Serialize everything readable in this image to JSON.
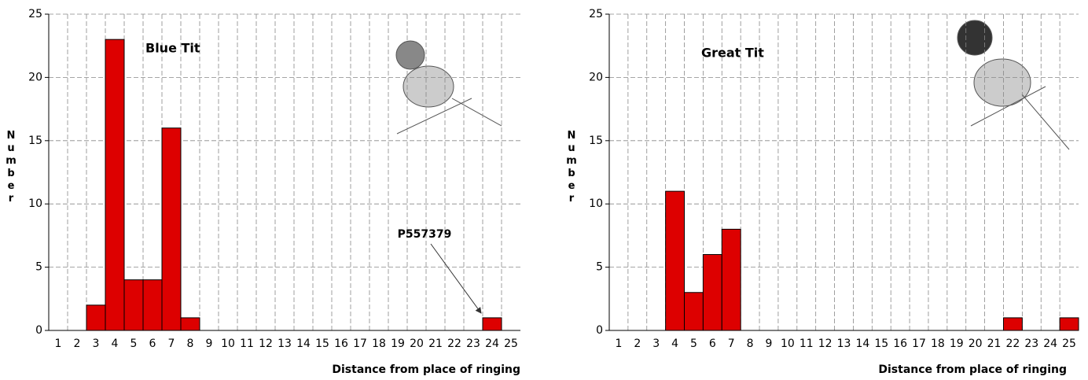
{
  "chart_data": [
    {
      "type": "bar",
      "title": "Blue Tit",
      "ylabel": "Number",
      "xlabel": "Distance from place of ringing",
      "categories": [
        "1",
        "2",
        "3",
        "4",
        "5",
        "6",
        "7",
        "8",
        "9",
        "10",
        "11",
        "12",
        "13",
        "14",
        "15",
        "16",
        "17",
        "18",
        "19",
        "20",
        "21",
        "22",
        "23",
        "24",
        "25"
      ],
      "values": [
        0,
        0,
        2,
        23,
        4,
        4,
        16,
        1,
        0,
        0,
        0,
        0,
        0,
        0,
        0,
        0,
        0,
        0,
        0,
        0,
        0,
        0,
        0,
        1,
        0
      ],
      "color": "#dd0000",
      "ylim": [
        0,
        25
      ],
      "yticks": [
        0,
        5,
        10,
        15,
        20,
        25
      ],
      "grid": true,
      "annotation": "P557379"
    },
    {
      "type": "bar",
      "title": "Great Tit",
      "ylabel": "Number",
      "xlabel": "Distance from place of ringing",
      "categories": [
        "1",
        "2",
        "3",
        "4",
        "5",
        "6",
        "7",
        "8",
        "9",
        "10",
        "11",
        "12",
        "13",
        "14",
        "15",
        "16",
        "17",
        "18",
        "19",
        "20",
        "21",
        "22",
        "23",
        "24",
        "25"
      ],
      "values": [
        0,
        0,
        0,
        11,
        3,
        6,
        8,
        0,
        0,
        0,
        0,
        0,
        0,
        0,
        0,
        0,
        0,
        0,
        0,
        0,
        0,
        1,
        0,
        0,
        1
      ],
      "color": "#dd0000",
      "ylim": [
        0,
        25
      ],
      "yticks": [
        0,
        5,
        10,
        15,
        20,
        25
      ],
      "grid": true
    }
  ]
}
